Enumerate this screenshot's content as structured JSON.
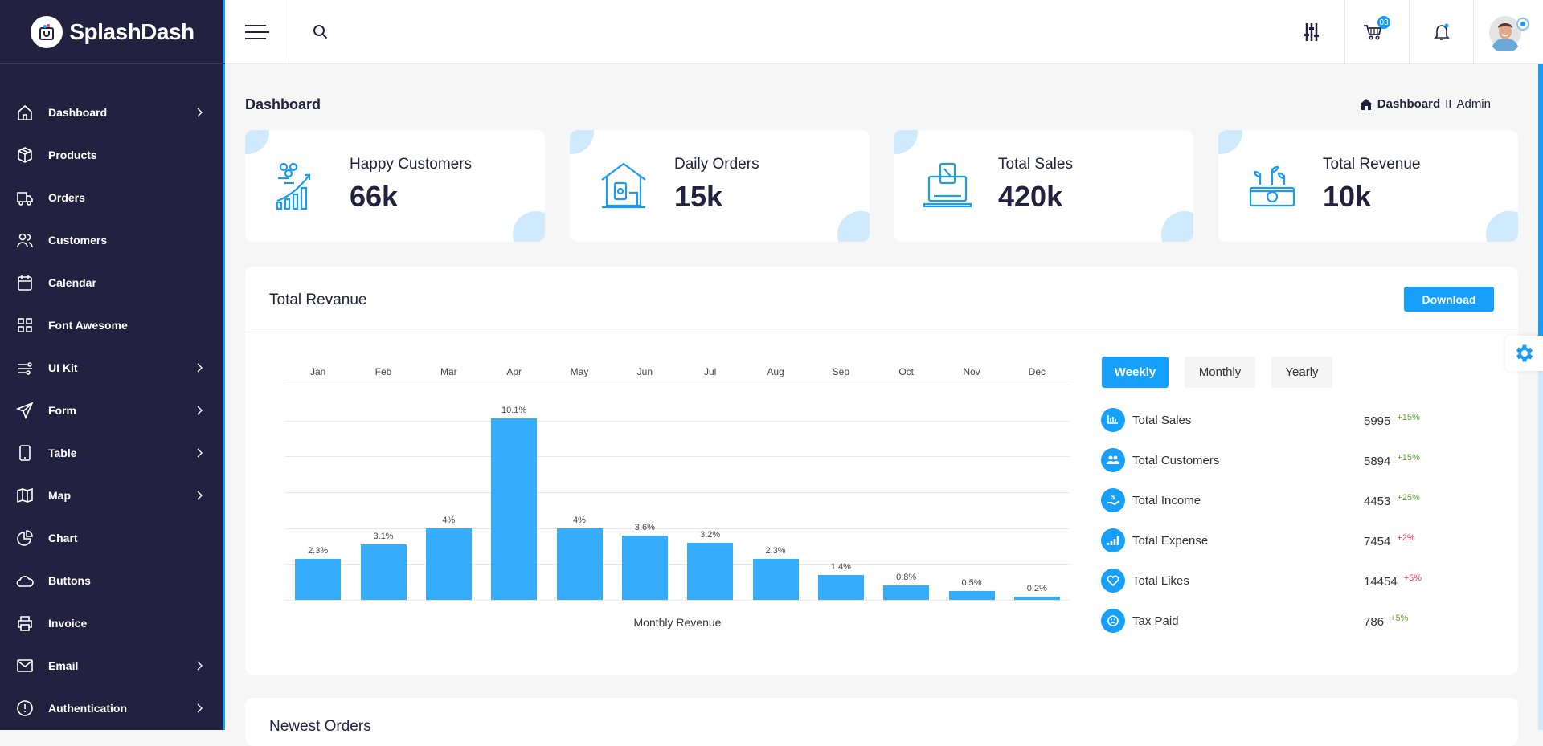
{
  "brand": {
    "name": "SplashDash"
  },
  "sidebar": {
    "items": [
      {
        "label": "Dashboard",
        "icon": "home-icon",
        "chevron": true
      },
      {
        "label": "Products",
        "icon": "box-icon",
        "chevron": false
      },
      {
        "label": "Orders",
        "icon": "truck-icon",
        "chevron": false
      },
      {
        "label": "Customers",
        "icon": "users-icon",
        "chevron": false
      },
      {
        "label": "Calendar",
        "icon": "calendar-icon",
        "chevron": false
      },
      {
        "label": "Font Awesome",
        "icon": "grid-icon",
        "chevron": false
      },
      {
        "label": "UI Kit",
        "icon": "sliders-icon",
        "chevron": true
      },
      {
        "label": "Form",
        "icon": "send-icon",
        "chevron": true
      },
      {
        "label": "Table",
        "icon": "tablet-icon",
        "chevron": true
      },
      {
        "label": "Map",
        "icon": "map-icon",
        "chevron": true
      },
      {
        "label": "Chart",
        "icon": "pie-chart-icon",
        "chevron": false
      },
      {
        "label": "Buttons",
        "icon": "cloud-icon",
        "chevron": false
      },
      {
        "label": "Invoice",
        "icon": "printer-icon",
        "chevron": false
      },
      {
        "label": "Email",
        "icon": "mail-icon",
        "chevron": true
      },
      {
        "label": "Authentication",
        "icon": "alert-circle-icon",
        "chevron": true
      }
    ]
  },
  "header": {
    "cart_badge": "03"
  },
  "page": {
    "title": "Dashboard",
    "breadcrumb": {
      "current": "Dashboard",
      "separator": "II",
      "user": "Admin"
    }
  },
  "cards": [
    {
      "title": "Happy Customers",
      "value": "66k"
    },
    {
      "title": "Daily Orders",
      "value": "15k"
    },
    {
      "title": "Total Sales",
      "value": "420k"
    },
    {
      "title": "Total Revenue",
      "value": "10k"
    }
  ],
  "revenue": {
    "title": "Total Revanue",
    "download_label": "Download",
    "tabs": [
      {
        "label": "Weekly",
        "active": true
      },
      {
        "label": "Monthly",
        "active": false
      },
      {
        "label": "Yearly",
        "active": false
      }
    ],
    "stats": [
      {
        "label": "Total Sales",
        "value": "5995",
        "change": "+15%",
        "trend": "up"
      },
      {
        "label": "Total Customers",
        "value": "5894",
        "change": "+15%",
        "trend": "up"
      },
      {
        "label": "Total Income",
        "value": "4453",
        "change": "+25%",
        "trend": "up"
      },
      {
        "label": "Total Expense",
        "value": "7454",
        "change": "+2%",
        "trend": "down"
      },
      {
        "label": "Total Likes",
        "value": "14454",
        "change": "+5%",
        "trend": "down"
      },
      {
        "label": "Tax Paid",
        "value": "786",
        "change": "+5%",
        "trend": "up"
      }
    ]
  },
  "chart_data": {
    "type": "bar",
    "categories": [
      "Jan",
      "Feb",
      "Mar",
      "Apr",
      "May",
      "Jun",
      "Jul",
      "Aug",
      "Sep",
      "Oct",
      "Nov",
      "Dec"
    ],
    "values": [
      2.3,
      3.1,
      4,
      10.1,
      4,
      3.6,
      3.2,
      2.3,
      1.4,
      0.8,
      0.5,
      0.2
    ],
    "data_labels": [
      "2.3%",
      "3.1%",
      "4%",
      "10.1%",
      "4%",
      "3.6%",
      "3.2%",
      "2.3%",
      "1.4%",
      "0.8%",
      "0.5%",
      "0.2%"
    ],
    "xlabel": "Monthly Revenue",
    "ylabel": "",
    "ylim": [
      0,
      12
    ],
    "grid": true,
    "category_axis": "top",
    "color": "#36acfc"
  },
  "orders": {
    "title": "Newest Orders"
  },
  "colors": {
    "sidebar": "#222240",
    "accent": "#16a0fb",
    "positive": "#5aa82a",
    "negative": "#f0365a"
  }
}
